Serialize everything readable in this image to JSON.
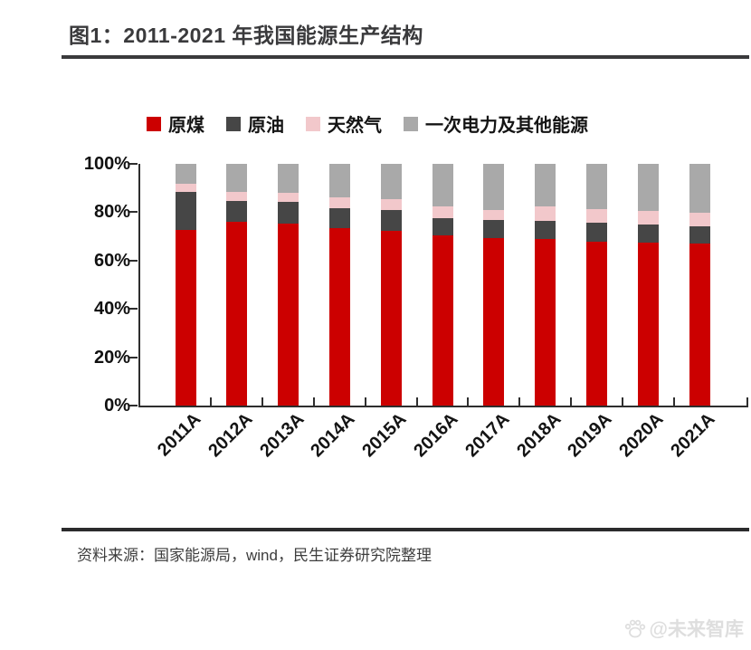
{
  "title": "图1：2011-2021 年我国能源生产结构",
  "chart_data": {
    "type": "bar",
    "stacked": true,
    "stack_total": 100,
    "unit": "percent",
    "title": "2011-2021 年我国能源生产结构",
    "categories": [
      "2011A",
      "2012A",
      "2013A",
      "2014A",
      "2015A",
      "2016A",
      "2017A",
      "2018A",
      "2019A",
      "2020A",
      "2021A"
    ],
    "series": [
      {
        "name": "原煤",
        "color": "#cc0000",
        "values": [
          72.7,
          76.1,
          75.1,
          73.5,
          72.2,
          70.3,
          69.2,
          68.9,
          67.9,
          67.3,
          67.2
        ]
      },
      {
        "name": "原油",
        "color": "#464646",
        "values": [
          15.8,
          8.7,
          9.3,
          8.2,
          8.7,
          7.4,
          7.6,
          7.5,
          7.7,
          7.5,
          6.9
        ]
      },
      {
        "name": "天然气",
        "color": "#f2c8cb",
        "values": [
          3.4,
          3.7,
          3.7,
          4.4,
          4.6,
          4.7,
          4.2,
          5.9,
          5.6,
          5.6,
          5.7
        ]
      },
      {
        "name": "一次电力及其他能源",
        "color": "#a9a9a9",
        "values": [
          8.1,
          11.5,
          11.9,
          13.9,
          14.5,
          17.6,
          19.0,
          17.7,
          18.8,
          19.6,
          20.2
        ]
      }
    ],
    "y_ticks": [
      {
        "label": "100%",
        "value": 100
      },
      {
        "label": "80%",
        "value": 80
      },
      {
        "label": "60%",
        "value": 60
      },
      {
        "label": "40%",
        "value": 40
      },
      {
        "label": "20%",
        "value": 20
      },
      {
        "label": "0%",
        "value": 0
      }
    ],
    "ylim": [
      0,
      100
    ],
    "grid": false,
    "legend_position": "top",
    "x_label_rotation_deg": 45,
    "axis_color": "#2e2e2e"
  },
  "footer": {
    "source": "资料来源：国家能源局，wind，民生证券研究院整理"
  },
  "watermark": {
    "icon": "paw-icon",
    "text": "@未来智库"
  },
  "colors": {
    "title": "#3a3a3c",
    "rule": "#2b2b2c",
    "text": "#141414"
  }
}
